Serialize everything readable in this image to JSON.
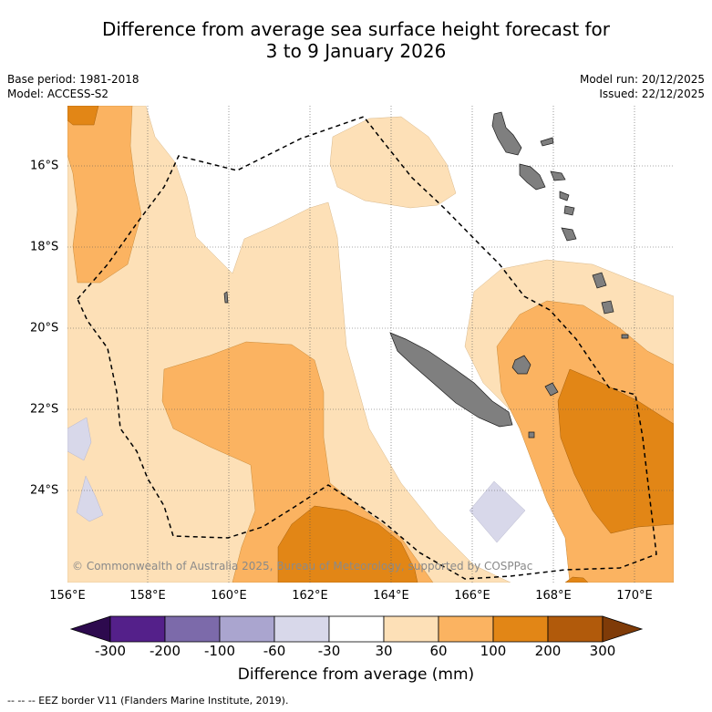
{
  "title": {
    "line1": "Difference from average sea surface height forecast for",
    "line2": "3 to 9 January 2026"
  },
  "meta": {
    "base_period": "Base period: 1981-2018",
    "model": "Model: ACCESS-S2",
    "model_run": "Model run: 20/12/2025",
    "issued": "Issued: 22/12/2025"
  },
  "map": {
    "x_ticks": [
      "156°E",
      "158°E",
      "160°E",
      "162°E",
      "164°E",
      "166°E",
      "168°E",
      "170°E"
    ],
    "y_ticks": [
      "16°S",
      "18°S",
      "20°S",
      "22°S",
      "24°S"
    ],
    "credit": "© Commonwealth of Australia 2025, Bureau of Meteorology, supported by COSPPac"
  },
  "colorbar": {
    "labels": [
      "-300",
      "-200",
      "-100",
      "-60",
      "-30",
      "30",
      "60",
      "100",
      "200",
      "300"
    ],
    "colors": [
      "#54208a",
      "#7c6aaa",
      "#aaa5cf",
      "#d8d8ea",
      "#ffffff",
      "#fde0b7",
      "#fbb361",
      "#e28616",
      "#b15a0b"
    ],
    "under_color": "#2d0a4e",
    "over_color": "#7f3b08",
    "title": "Difference from average (mm)"
  },
  "legend": {
    "text": "--  --  -- EEZ border V11 (Flanders Marine Institute, 2019)."
  }
}
